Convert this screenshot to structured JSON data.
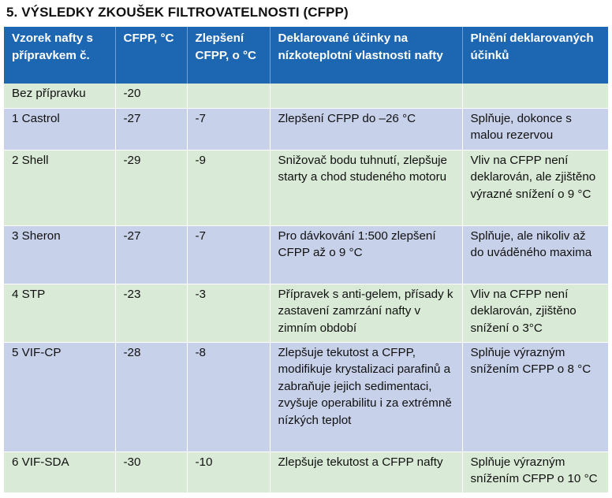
{
  "title": "5. VÝSLEDKY ZKOUŠEK FILTROVATELNOSTI (CFPP)",
  "headers": [
    "Vzorek nafty s přípravkem č.",
    "CFPP, °C",
    "Zlepšení CFPP, o °C",
    "Deklarované účinky na nízkoteplotní vlastnosti nafty",
    "Plnění deklarovaných účinků"
  ],
  "rows": [
    {
      "sample": "Bez přípravku",
      "cfpp": "-20",
      "improvement": "",
      "declared": "",
      "fulfilment": ""
    },
    {
      "sample": "1 Castrol",
      "cfpp": "-27",
      "improvement": "-7",
      "declared": "Zlepšení CFPP do –26 °C",
      "fulfilment": "Splňuje, dokonce s malou rezervou"
    },
    {
      "sample": "2 Shell",
      "cfpp": "-29",
      "improvement": "-9",
      "declared": "Snižovač bodu tuhnutí, zlepšuje starty a chod studeného motoru",
      "fulfilment": "Vliv na CFPP není deklarován, ale zjištěno výrazné snížení o 9 °C"
    },
    {
      "sample": "3 Sheron",
      "cfpp": "-27",
      "improvement": "-7",
      "declared": "Pro dávkování 1:500 zlepšení CFPP až o 9 °C",
      "fulfilment": "Splňuje, ale nikoliv až do uváděného maxima"
    },
    {
      "sample": "4 STP",
      "cfpp": "-23",
      "improvement": "-3",
      "declared": "Přípravek s anti-gelem, přísady k zastavení zamrzání nafty v zimním období",
      "fulfilment": "Vliv na CFPP není deklarován, zjištěno snížení o 3°C"
    },
    {
      "sample": "5 VIF-CP",
      "cfpp": "-28",
      "improvement": "-8",
      "declared": "Zlepšuje tekutost a CFPP, modifikuje krystalizaci parafinů a zabraňuje jejich sedimentaci, zvyšuje operabilitu i za extrémně nízkých teplot",
      "fulfilment": "Splňuje výrazným snížením CFPP o 8 °C"
    },
    {
      "sample": "6 VIF-SDA",
      "cfpp": "-30",
      "improvement": "-10",
      "declared": "Zlepšuje tekutost a CFPP nafty",
      "fulfilment": "Splňuje výrazným snížením CFPP o 10 °C"
    }
  ],
  "colors": {
    "header_bg": "#1d66b1",
    "row_green": "#d9ead6",
    "row_blue": "#c8d1ea"
  }
}
